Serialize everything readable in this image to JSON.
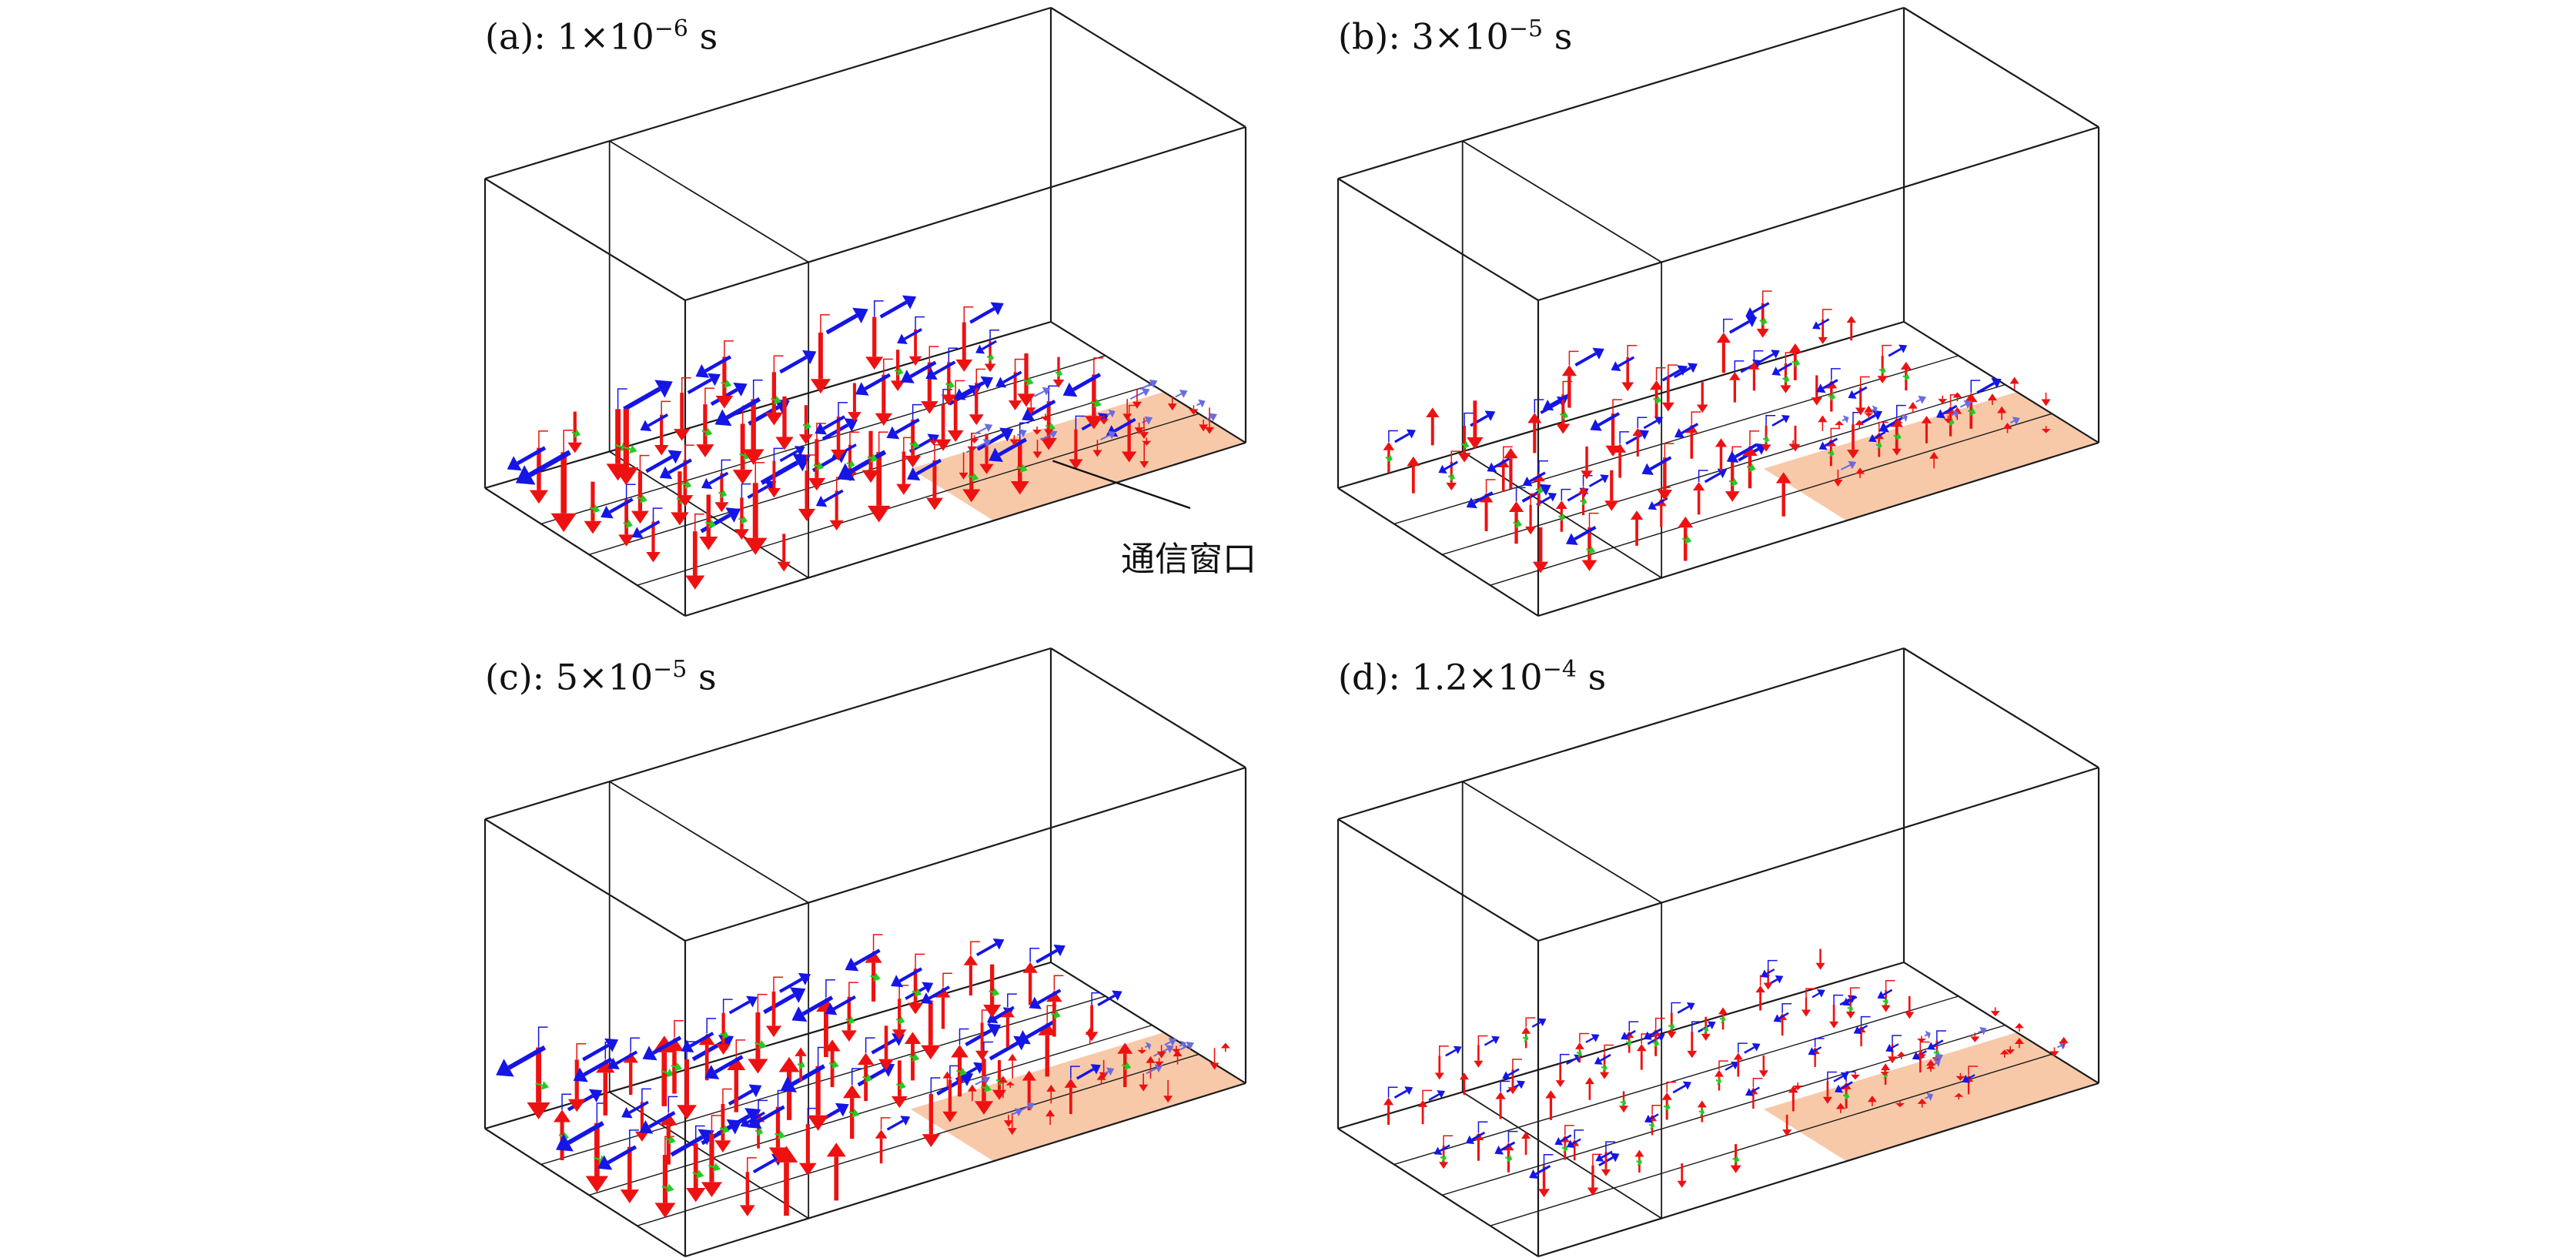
{
  "panels": [
    {
      "id": "a",
      "prefix": "(a): ",
      "mantissa": "1",
      "exponent": "−6",
      "unit": "s",
      "intensity": 1.0,
      "mode": "down"
    },
    {
      "id": "b",
      "prefix": "(b): ",
      "mantissa": "3",
      "exponent": "−5",
      "unit": "s",
      "intensity": 0.55,
      "mode": "mixed-up"
    },
    {
      "id": "c",
      "prefix": "(c): ",
      "mantissa": "5",
      "exponent": "−5",
      "unit": "s",
      "intensity": 0.95,
      "mode": "mixed"
    },
    {
      "id": "d",
      "prefix": "(d): ",
      "mantissa": "1.2",
      "exponent": "−4",
      "unit": "s",
      "intensity": 0.25,
      "mode": "mixed"
    }
  ],
  "times_label": {
    "a": "(a): 1×10−6 s",
    "b": "(b): 3×10−5 s",
    "c": "(c): 5×10−5 s",
    "d": "(d): 1.2×10−4 s"
  },
  "annotation": {
    "text": "通信窗口",
    "panel": "a"
  },
  "colors": {
    "box_edge": "#1a1a1a",
    "window_fill": "#f6c3a0",
    "arrow_vertical": "#ee1111",
    "arrow_horizontal": "#1515e6",
    "arrow_transverse": "#22cc22"
  },
  "icons": {
    "arrow_vertical": "red-arrow",
    "arrow_horizontal": "blue-arrow",
    "arrow_transverse": "green-arrow"
  }
}
